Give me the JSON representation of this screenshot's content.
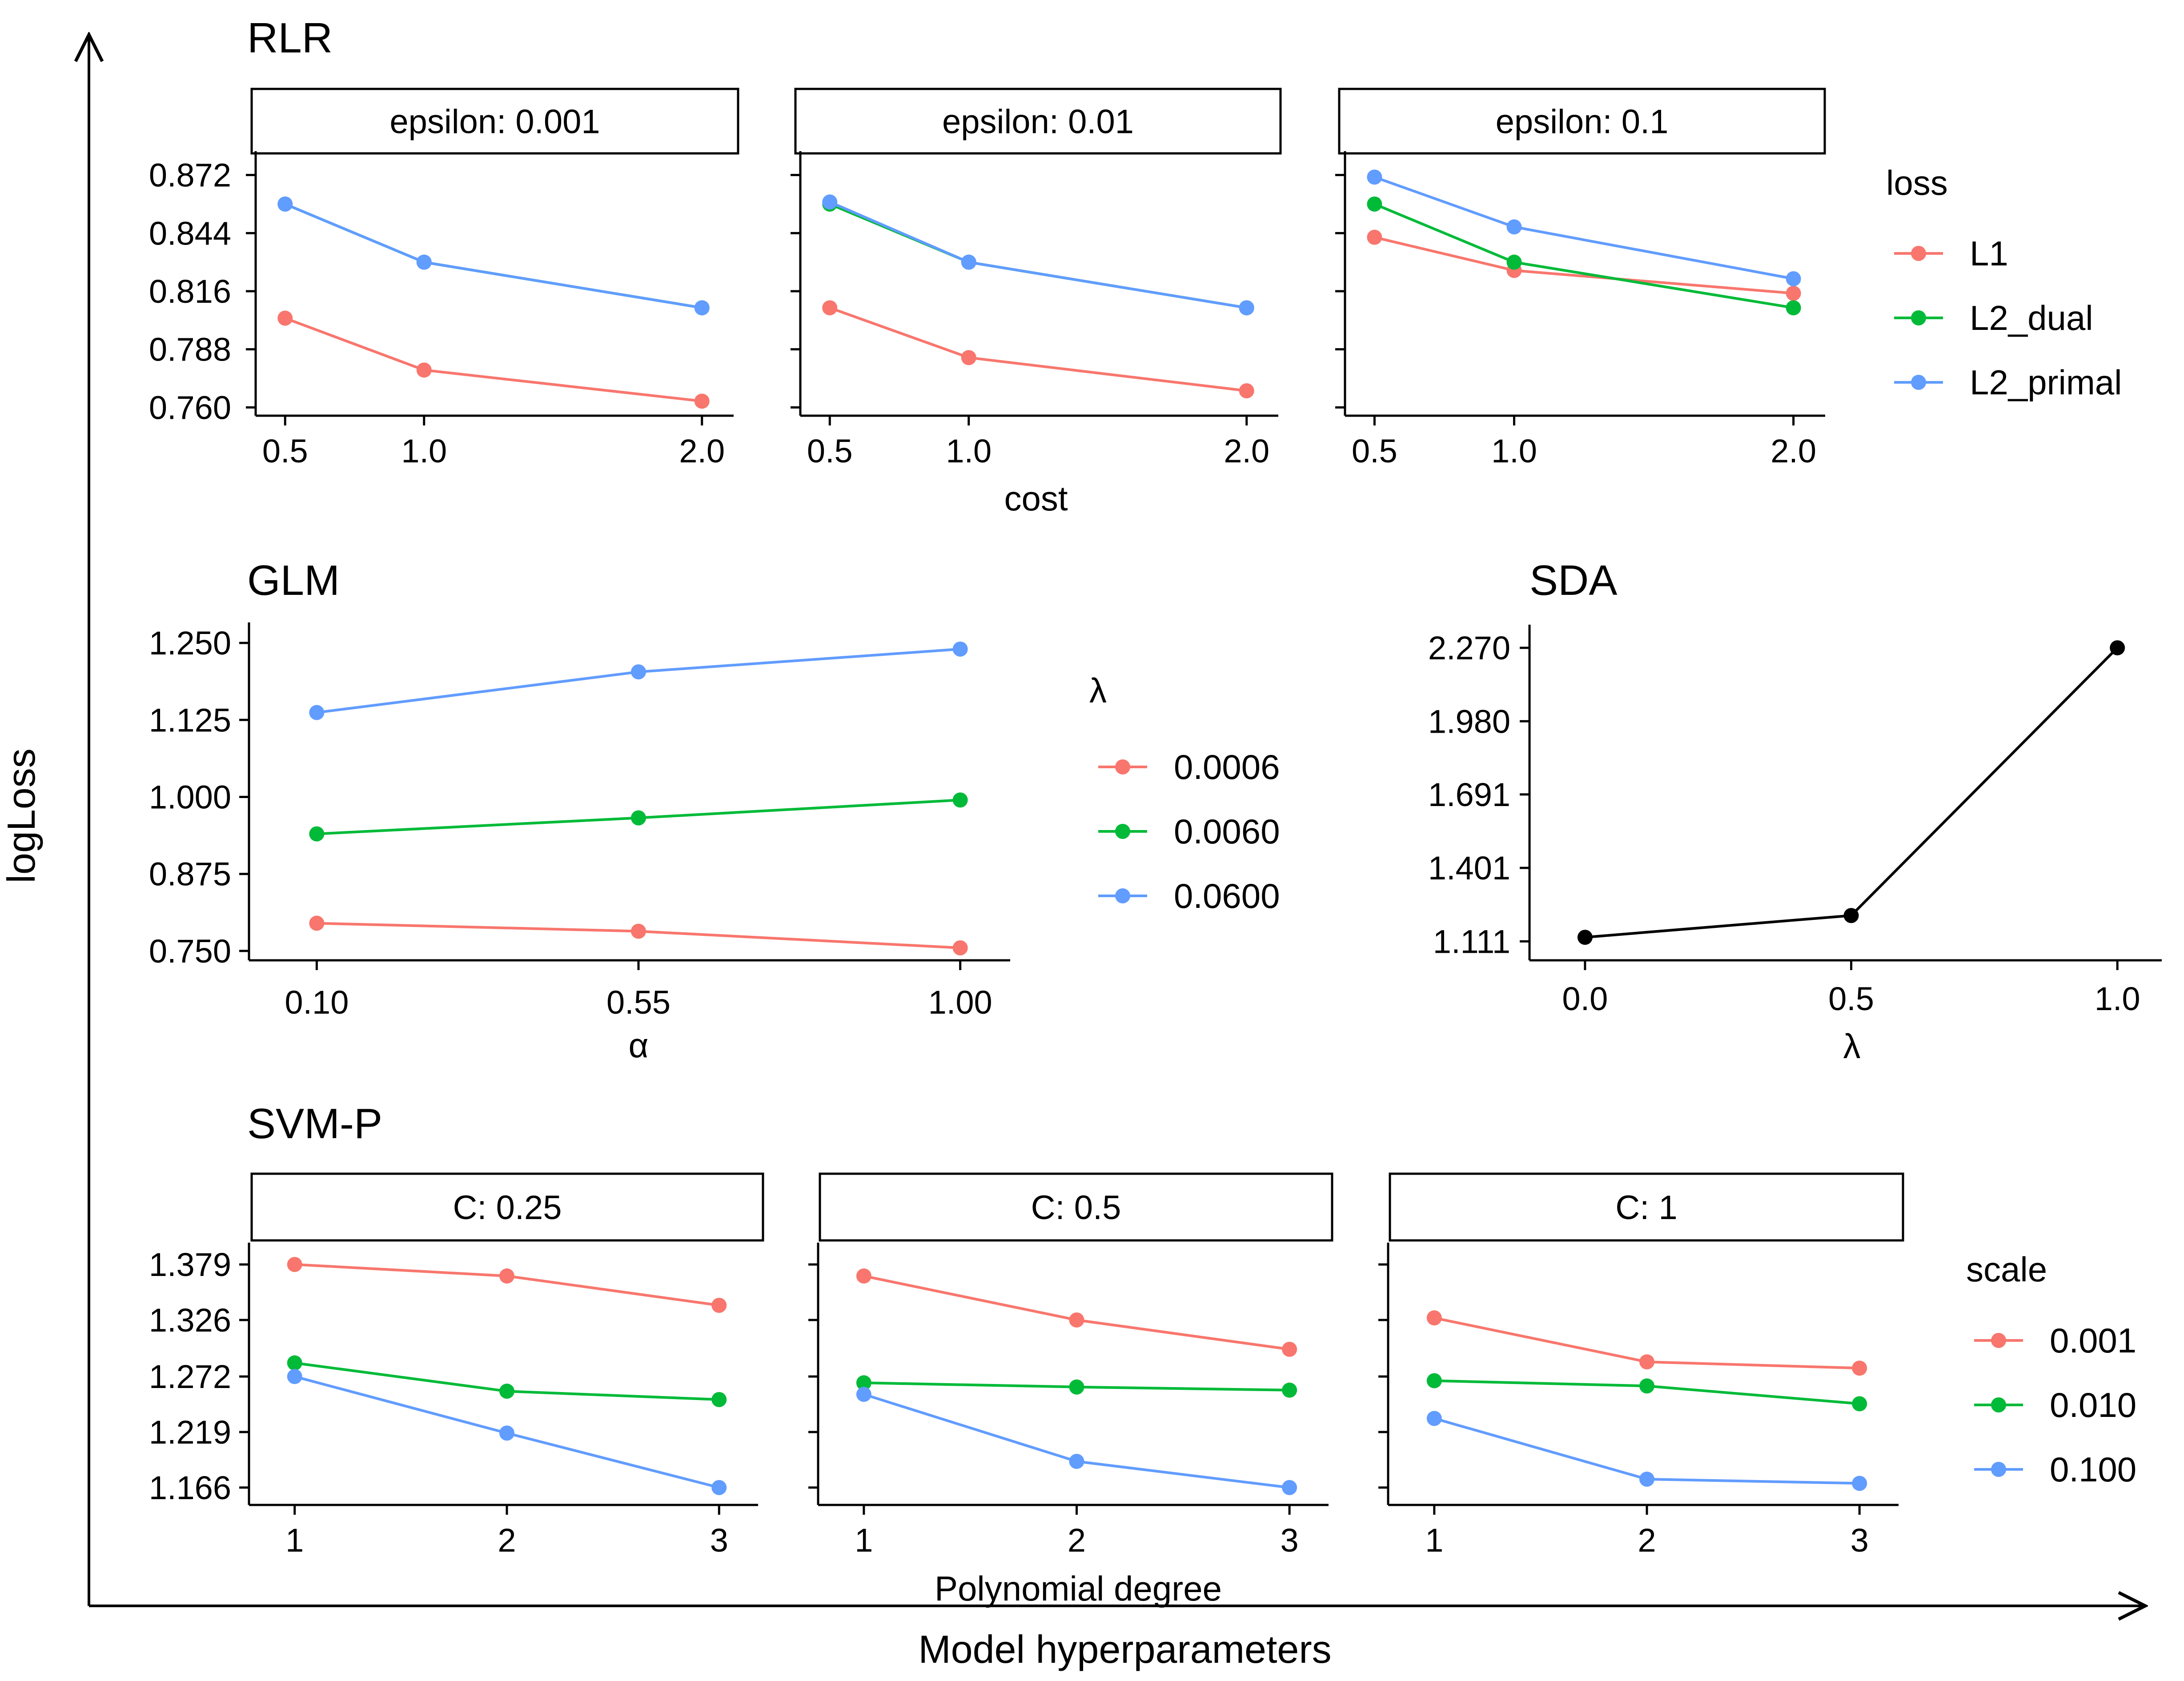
{
  "outer": {
    "ylabel": "logLoss",
    "xlabel": "Model hyperparameters"
  },
  "chart_data": [
    {
      "id": "rlr",
      "type": "line",
      "title": "RLR",
      "xlabel": "cost",
      "ylabel": "",
      "x_ticks": [
        "0.5",
        "1.0",
        "2.0"
      ],
      "y_ticks": [
        "0.760",
        "0.788",
        "0.816",
        "0.844",
        "0.872"
      ],
      "xlim": [
        0.45,
        2.05
      ],
      "ylim": [
        0.756,
        0.876
      ],
      "legend": {
        "title": "loss",
        "position": "right"
      },
      "facets": [
        {
          "label": "epsilon: 0.001",
          "series": [
            {
              "name": "L1",
              "color": "#F8766D",
              "x": [
                0.5,
                1.0,
                2.0
              ],
              "y": [
                0.803,
                0.778,
                0.763
              ]
            },
            {
              "name": "L2_dual",
              "color": "#00BA38",
              "x": [
                0.5,
                1.0,
                2.0
              ],
              "y": [
                0.858,
                0.83,
                0.808
              ]
            },
            {
              "name": "L2_primal",
              "color": "#619CFF",
              "x": [
                0.5,
                1.0,
                2.0
              ],
              "y": [
                0.858,
                0.83,
                0.808
              ]
            }
          ]
        },
        {
          "label": "epsilon: 0.01",
          "series": [
            {
              "name": "L1",
              "color": "#F8766D",
              "x": [
                0.5,
                1.0,
                2.0
              ],
              "y": [
                0.808,
                0.784,
                0.768
              ]
            },
            {
              "name": "L2_dual",
              "color": "#00BA38",
              "x": [
                0.5,
                1.0,
                2.0
              ],
              "y": [
                0.858,
                0.83,
                0.808
              ]
            },
            {
              "name": "L2_primal",
              "color": "#619CFF",
              "x": [
                0.5,
                1.0,
                2.0
              ],
              "y": [
                0.859,
                0.83,
                0.808
              ]
            }
          ]
        },
        {
          "label": "epsilon: 0.1",
          "series": [
            {
              "name": "L1",
              "color": "#F8766D",
              "x": [
                0.5,
                1.0,
                2.0
              ],
              "y": [
                0.842,
                0.826,
                0.815
              ]
            },
            {
              "name": "L2_dual",
              "color": "#00BA38",
              "x": [
                0.5,
                1.0,
                2.0
              ],
              "y": [
                0.858,
                0.83,
                0.808
              ]
            },
            {
              "name": "L2_primal",
              "color": "#619CFF",
              "x": [
                0.5,
                1.0,
                2.0
              ],
              "y": [
                0.871,
                0.847,
                0.822
              ]
            }
          ]
        }
      ]
    },
    {
      "id": "glm",
      "type": "line",
      "title": "GLM",
      "xlabel": "α",
      "ylabel": "",
      "x_ticks": [
        "0.10",
        "0.55",
        "1.00"
      ],
      "y_ticks": [
        "0.750",
        "0.875",
        "1.000",
        "1.125",
        "1.250"
      ],
      "xlim": [
        0.055,
        1.045
      ],
      "ylim": [
        0.742,
        1.258
      ],
      "legend": {
        "title": "λ",
        "position": "right"
      },
      "series": [
        {
          "name": "0.0006",
          "color": "#F8766D",
          "x": [
            0.1,
            0.55,
            1.0
          ],
          "y": [
            0.795,
            0.782,
            0.755
          ]
        },
        {
          "name": "0.0060",
          "color": "#00BA38",
          "x": [
            0.1,
            0.55,
            1.0
          ],
          "y": [
            0.94,
            0.966,
            0.995
          ]
        },
        {
          "name": "0.0600",
          "color": "#619CFF",
          "x": [
            0.1,
            0.55,
            1.0
          ],
          "y": [
            1.137,
            1.203,
            1.24
          ]
        }
      ]
    },
    {
      "id": "sda",
      "type": "line",
      "title": "SDA",
      "xlabel": "λ",
      "ylabel": "",
      "x_ticks": [
        "0.0",
        "0.5",
        "1.0"
      ],
      "y_ticks": [
        "1.111",
        "1.401",
        "1.691",
        "1.980",
        "2.270"
      ],
      "xlim": [
        -0.05,
        1.05
      ],
      "ylim": [
        1.08,
        2.3
      ],
      "series": [
        {
          "name": "",
          "color": "#000000",
          "x": [
            0.0,
            0.5,
            1.0
          ],
          "y": [
            1.127,
            1.213,
            2.27
          ]
        }
      ]
    },
    {
      "id": "svmp",
      "type": "line",
      "title": "SVM-P",
      "xlabel": "Polynomial degree",
      "ylabel": "",
      "x_ticks": [
        "1",
        "2",
        "3"
      ],
      "y_ticks": [
        "1.166",
        "1.219",
        "1.272",
        "1.326",
        "1.379"
      ],
      "xlim": [
        0.9,
        3.1
      ],
      "ylim": [
        1.16,
        1.385
      ],
      "legend": {
        "title": "scale",
        "position": "right"
      },
      "facets": [
        {
          "label": "C: 0.25",
          "series": [
            {
              "name": "0.001",
              "color": "#F8766D",
              "x": [
                1,
                2,
                3
              ],
              "y": [
                1.379,
                1.368,
                1.34
              ]
            },
            {
              "name": "0.010",
              "color": "#00BA38",
              "x": [
                1,
                2,
                3
              ],
              "y": [
                1.285,
                1.258,
                1.25
              ]
            },
            {
              "name": "0.100",
              "color": "#619CFF",
              "x": [
                1,
                2,
                3
              ],
              "y": [
                1.272,
                1.218,
                1.166
              ]
            }
          ]
        },
        {
          "label": "C: 0.5",
          "series": [
            {
              "name": "0.001",
              "color": "#F8766D",
              "x": [
                1,
                2,
                3
              ],
              "y": [
                1.368,
                1.326,
                1.298
              ]
            },
            {
              "name": "0.010",
              "color": "#00BA38",
              "x": [
                1,
                2,
                3
              ],
              "y": [
                1.266,
                1.262,
                1.259
              ]
            },
            {
              "name": "0.100",
              "color": "#619CFF",
              "x": [
                1,
                2,
                3
              ],
              "y": [
                1.255,
                1.191,
                1.166
              ]
            }
          ]
        },
        {
          "label": "C: 1",
          "series": [
            {
              "name": "0.001",
              "color": "#F8766D",
              "x": [
                1,
                2,
                3
              ],
              "y": [
                1.328,
                1.286,
                1.28
              ]
            },
            {
              "name": "0.010",
              "color": "#00BA38",
              "x": [
                1,
                2,
                3
              ],
              "y": [
                1.268,
                1.263,
                1.246
              ]
            },
            {
              "name": "0.100",
              "color": "#619CFF",
              "x": [
                1,
                2,
                3
              ],
              "y": [
                1.232,
                1.174,
                1.17
              ]
            }
          ]
        }
      ]
    }
  ]
}
